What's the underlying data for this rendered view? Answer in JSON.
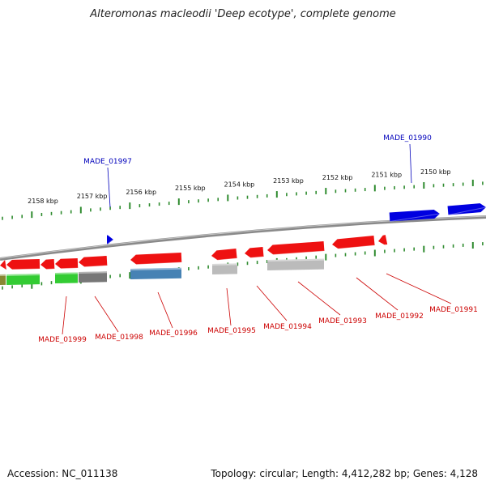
{
  "title": "Alteromonas macleodii 'Deep ecotype', complete genome",
  "footer": {
    "accession": "Accession: NC_011138",
    "summary": "Topology: circular; Length: 4,412,282 bp; Genes: 4,128"
  },
  "colors": {
    "backbone": "#8a8a8a",
    "tick": "#2e8b2e",
    "forward_gene": "#0000e0",
    "reverse_gene": "#ee1111",
    "forward_label": "#0000bb",
    "reverse_label": "#cc0000",
    "cog_green": "#33cc33",
    "cog_gray": "#777777",
    "cog_light": "#bbbbbb",
    "cog_blue": "#4682b4",
    "cog_olive": "#888833"
  },
  "ruler": {
    "unit": "kbp",
    "ticks": [
      {
        "kbp": 2158,
        "label": "2158 kbp"
      },
      {
        "kbp": 2157,
        "label": "2157 kbp"
      },
      {
        "kbp": 2156,
        "label": "2156 kbp"
      },
      {
        "kbp": 2155,
        "label": "2155 kbp"
      },
      {
        "kbp": 2154,
        "label": "2154 kbp"
      },
      {
        "kbp": 2153,
        "label": "2153 kbp"
      },
      {
        "kbp": 2152,
        "label": "2152 kbp"
      },
      {
        "kbp": 2151,
        "label": "2151 kbp"
      },
      {
        "kbp": 2150,
        "label": "2150 kbp"
      }
    ]
  },
  "labels": [
    {
      "name": "MADE_01990",
      "strand": "forward"
    },
    {
      "name": "MADE_01997",
      "strand": "forward"
    },
    {
      "name": "MADE_01999",
      "strand": "reverse"
    },
    {
      "name": "MADE_01998",
      "strand": "reverse"
    },
    {
      "name": "MADE_01996",
      "strand": "reverse"
    },
    {
      "name": "MADE_01995",
      "strand": "reverse"
    },
    {
      "name": "MADE_01994",
      "strand": "reverse"
    },
    {
      "name": "MADE_01993",
      "strand": "reverse"
    },
    {
      "name": "MADE_01992",
      "strand": "reverse"
    },
    {
      "name": "MADE_01991",
      "strand": "reverse"
    }
  ]
}
